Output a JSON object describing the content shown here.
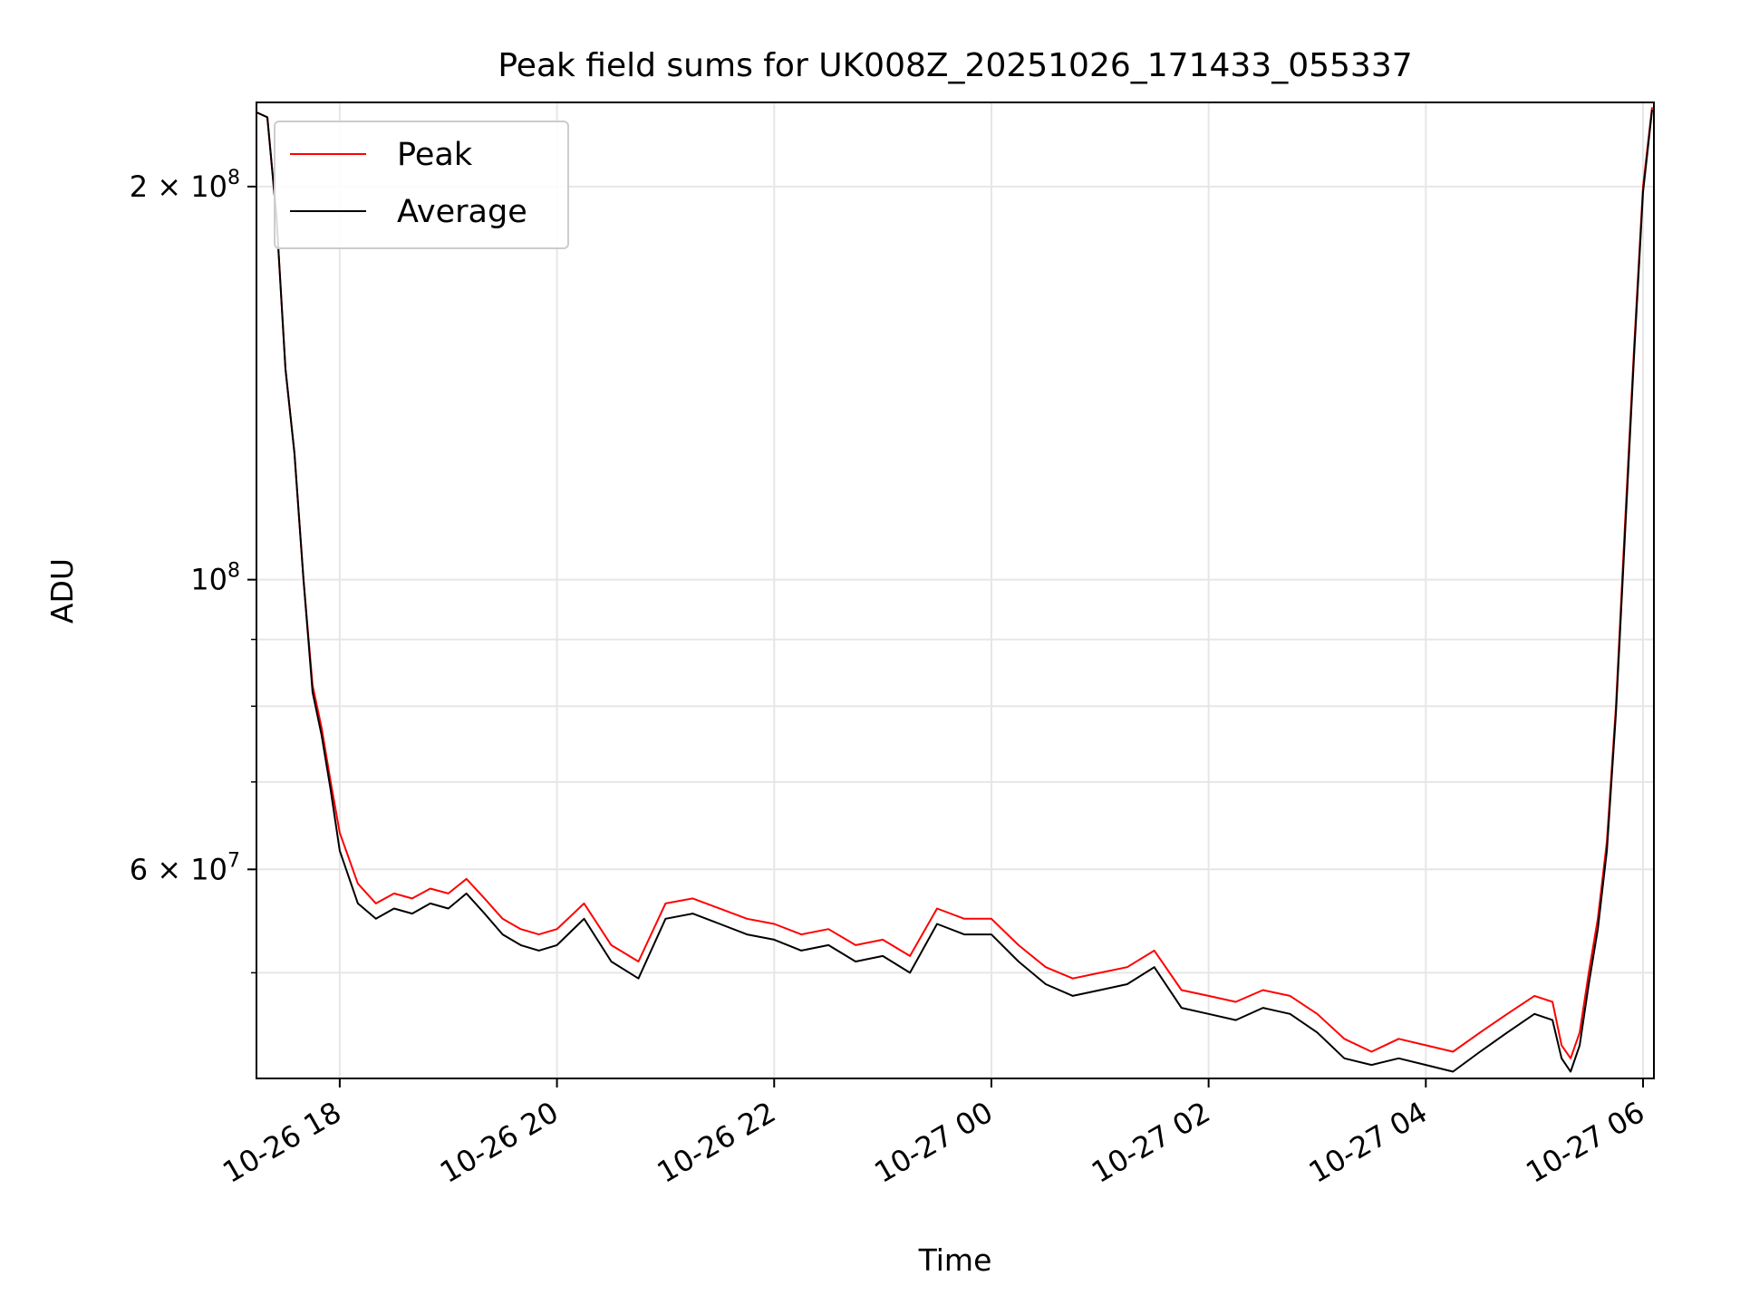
{
  "chart_data": {
    "type": "line",
    "title": "Peak field sums for UK008Z_20251026_171433_055337",
    "xlabel": "Time",
    "ylabel": "ADU",
    "x_range": [
      "2025-10-26 17:14",
      "2025-10-27 06:06"
    ],
    "y_scale": "log",
    "ylim": [
      41500000,
      232000000
    ],
    "grid": true,
    "legend_position": "top-left",
    "x_ticks": [
      {
        "value": "2025-10-26 18:00",
        "label": "10-26 18"
      },
      {
        "value": "2025-10-26 20:00",
        "label": "10-26 20"
      },
      {
        "value": "2025-10-26 22:00",
        "label": "10-26 22"
      },
      {
        "value": "2025-10-27 00:00",
        "label": "10-27 00"
      },
      {
        "value": "2025-10-27 02:00",
        "label": "10-27 02"
      },
      {
        "value": "2025-10-27 04:00",
        "label": "10-27 04"
      },
      {
        "value": "2025-10-27 06:00",
        "label": "10-27 06"
      }
    ],
    "y_major_ticks": [
      {
        "value": 60000000,
        "base": "6",
        "mult": "×",
        "exp_base": "10",
        "exp": "7"
      },
      {
        "value": 100000000,
        "base": "",
        "mult": "",
        "exp_base": "10",
        "exp": "8"
      },
      {
        "value": 200000000,
        "base": "2",
        "mult": "×",
        "exp_base": "10",
        "exp": "8"
      }
    ],
    "y_minor_ticks": [
      50000000,
      70000000,
      80000000,
      90000000
    ],
    "series": [
      {
        "name": "Peak",
        "color": "#ff0000",
        "points": [
          [
            "2025-10-26 17:14",
            228000000
          ],
          [
            "2025-10-26 17:20",
            226000000
          ],
          [
            "2025-10-26 17:25",
            190000000
          ],
          [
            "2025-10-26 17:30",
            145000000
          ],
          [
            "2025-10-26 17:35",
            125000000
          ],
          [
            "2025-10-26 17:40",
            100000000
          ],
          [
            "2025-10-26 17:45",
            83000000
          ],
          [
            "2025-10-26 17:50",
            77000000
          ],
          [
            "2025-10-26 17:55",
            70000000
          ],
          [
            "2025-10-26 18:00",
            64000000
          ],
          [
            "2025-10-26 18:10",
            58500000
          ],
          [
            "2025-10-26 18:20",
            56500000
          ],
          [
            "2025-10-26 18:30",
            57500000
          ],
          [
            "2025-10-26 18:40",
            57000000
          ],
          [
            "2025-10-26 18:50",
            58000000
          ],
          [
            "2025-10-26 19:00",
            57500000
          ],
          [
            "2025-10-26 19:10",
            59000000
          ],
          [
            "2025-10-26 19:20",
            57000000
          ],
          [
            "2025-10-26 19:30",
            55000000
          ],
          [
            "2025-10-26 19:40",
            54000000
          ],
          [
            "2025-10-26 19:50",
            53500000
          ],
          [
            "2025-10-26 20:00",
            54000000
          ],
          [
            "2025-10-26 20:15",
            56500000
          ],
          [
            "2025-10-26 20:30",
            52500000
          ],
          [
            "2025-10-26 20:45",
            51000000
          ],
          [
            "2025-10-26 21:00",
            56500000
          ],
          [
            "2025-10-26 21:15",
            57000000
          ],
          [
            "2025-10-26 21:30",
            56000000
          ],
          [
            "2025-10-26 21:45",
            55000000
          ],
          [
            "2025-10-26 22:00",
            54500000
          ],
          [
            "2025-10-26 22:15",
            53500000
          ],
          [
            "2025-10-26 22:30",
            54000000
          ],
          [
            "2025-10-26 22:45",
            52500000
          ],
          [
            "2025-10-26 23:00",
            53000000
          ],
          [
            "2025-10-26 23:15",
            51500000
          ],
          [
            "2025-10-26 23:30",
            56000000
          ],
          [
            "2025-10-26 23:45",
            55000000
          ],
          [
            "2025-10-27 00:00",
            55000000
          ],
          [
            "2025-10-27 00:15",
            52500000
          ],
          [
            "2025-10-27 00:30",
            50500000
          ],
          [
            "2025-10-27 00:45",
            49500000
          ],
          [
            "2025-10-27 01:00",
            50000000
          ],
          [
            "2025-10-27 01:15",
            50500000
          ],
          [
            "2025-10-27 01:30",
            52000000
          ],
          [
            "2025-10-27 01:45",
            48500000
          ],
          [
            "2025-10-27 02:00",
            48000000
          ],
          [
            "2025-10-27 02:15",
            47500000
          ],
          [
            "2025-10-27 02:30",
            48500000
          ],
          [
            "2025-10-27 02:45",
            48000000
          ],
          [
            "2025-10-27 03:00",
            46500000
          ],
          [
            "2025-10-27 03:15",
            44500000
          ],
          [
            "2025-10-27 03:30",
            43500000
          ],
          [
            "2025-10-27 03:45",
            44500000
          ],
          [
            "2025-10-27 04:00",
            44000000
          ],
          [
            "2025-10-27 04:15",
            43500000
          ],
          [
            "2025-10-27 04:30",
            45000000
          ],
          [
            "2025-10-27 04:45",
            46500000
          ],
          [
            "2025-10-27 05:00",
            48000000
          ],
          [
            "2025-10-27 05:10",
            47500000
          ],
          [
            "2025-10-27 05:15",
            44000000
          ],
          [
            "2025-10-27 05:20",
            43000000
          ],
          [
            "2025-10-27 05:25",
            45000000
          ],
          [
            "2025-10-27 05:30",
            50000000
          ],
          [
            "2025-10-27 05:35",
            55000000
          ],
          [
            "2025-10-27 05:40",
            63000000
          ],
          [
            "2025-10-27 05:45",
            80000000
          ],
          [
            "2025-10-27 05:50",
            110000000
          ],
          [
            "2025-10-27 05:55",
            150000000
          ],
          [
            "2025-10-27 06:00",
            200000000
          ],
          [
            "2025-10-27 06:05",
            230000000
          ]
        ]
      },
      {
        "name": "Average",
        "color": "#000000",
        "points": [
          [
            "2025-10-26 17:14",
            228000000
          ],
          [
            "2025-10-26 17:20",
            226000000
          ],
          [
            "2025-10-26 17:25",
            190000000
          ],
          [
            "2025-10-26 17:30",
            145000000
          ],
          [
            "2025-10-26 17:35",
            125000000
          ],
          [
            "2025-10-26 17:40",
            100000000
          ],
          [
            "2025-10-26 17:45",
            82000000
          ],
          [
            "2025-10-26 17:50",
            76000000
          ],
          [
            "2025-10-26 17:55",
            69000000
          ],
          [
            "2025-10-26 18:00",
            62000000
          ],
          [
            "2025-10-26 18:10",
            56500000
          ],
          [
            "2025-10-26 18:20",
            55000000
          ],
          [
            "2025-10-26 18:30",
            56000000
          ],
          [
            "2025-10-26 18:40",
            55500000
          ],
          [
            "2025-10-26 18:50",
            56500000
          ],
          [
            "2025-10-26 19:00",
            56000000
          ],
          [
            "2025-10-26 19:10",
            57500000
          ],
          [
            "2025-10-26 19:20",
            55500000
          ],
          [
            "2025-10-26 19:30",
            53500000
          ],
          [
            "2025-10-26 19:40",
            52500000
          ],
          [
            "2025-10-26 19:50",
            52000000
          ],
          [
            "2025-10-26 20:00",
            52500000
          ],
          [
            "2025-10-26 20:15",
            55000000
          ],
          [
            "2025-10-26 20:30",
            51000000
          ],
          [
            "2025-10-26 20:45",
            49500000
          ],
          [
            "2025-10-26 21:00",
            55000000
          ],
          [
            "2025-10-26 21:15",
            55500000
          ],
          [
            "2025-10-26 21:30",
            54500000
          ],
          [
            "2025-10-26 21:45",
            53500000
          ],
          [
            "2025-10-26 22:00",
            53000000
          ],
          [
            "2025-10-26 22:15",
            52000000
          ],
          [
            "2025-10-26 22:30",
            52500000
          ],
          [
            "2025-10-26 22:45",
            51000000
          ],
          [
            "2025-10-26 23:00",
            51500000
          ],
          [
            "2025-10-26 23:15",
            50000000
          ],
          [
            "2025-10-26 23:30",
            54500000
          ],
          [
            "2025-10-26 23:45",
            53500000
          ],
          [
            "2025-10-27 00:00",
            53500000
          ],
          [
            "2025-10-27 00:15",
            51000000
          ],
          [
            "2025-10-27 00:30",
            49000000
          ],
          [
            "2025-10-27 00:45",
            48000000
          ],
          [
            "2025-10-27 01:00",
            48500000
          ],
          [
            "2025-10-27 01:15",
            49000000
          ],
          [
            "2025-10-27 01:30",
            50500000
          ],
          [
            "2025-10-27 01:45",
            47000000
          ],
          [
            "2025-10-27 02:00",
            46500000
          ],
          [
            "2025-10-27 02:15",
            46000000
          ],
          [
            "2025-10-27 02:30",
            47000000
          ],
          [
            "2025-10-27 02:45",
            46500000
          ],
          [
            "2025-10-27 03:00",
            45000000
          ],
          [
            "2025-10-27 03:15",
            43000000
          ],
          [
            "2025-10-27 03:30",
            42500000
          ],
          [
            "2025-10-27 03:45",
            43000000
          ],
          [
            "2025-10-27 04:00",
            42500000
          ],
          [
            "2025-10-27 04:15",
            42000000
          ],
          [
            "2025-10-27 04:30",
            43500000
          ],
          [
            "2025-10-27 04:45",
            45000000
          ],
          [
            "2025-10-27 05:00",
            46500000
          ],
          [
            "2025-10-27 05:10",
            46000000
          ],
          [
            "2025-10-27 05:15",
            43000000
          ],
          [
            "2025-10-27 05:20",
            42000000
          ],
          [
            "2025-10-27 05:25",
            44000000
          ],
          [
            "2025-10-27 05:30",
            49000000
          ],
          [
            "2025-10-27 05:35",
            54000000
          ],
          [
            "2025-10-27 05:40",
            62000000
          ],
          [
            "2025-10-27 05:45",
            79000000
          ],
          [
            "2025-10-27 05:50",
            108000000
          ],
          [
            "2025-10-27 05:55",
            148000000
          ],
          [
            "2025-10-27 06:00",
            198000000
          ],
          [
            "2025-10-27 06:05",
            229000000
          ]
        ]
      }
    ]
  }
}
